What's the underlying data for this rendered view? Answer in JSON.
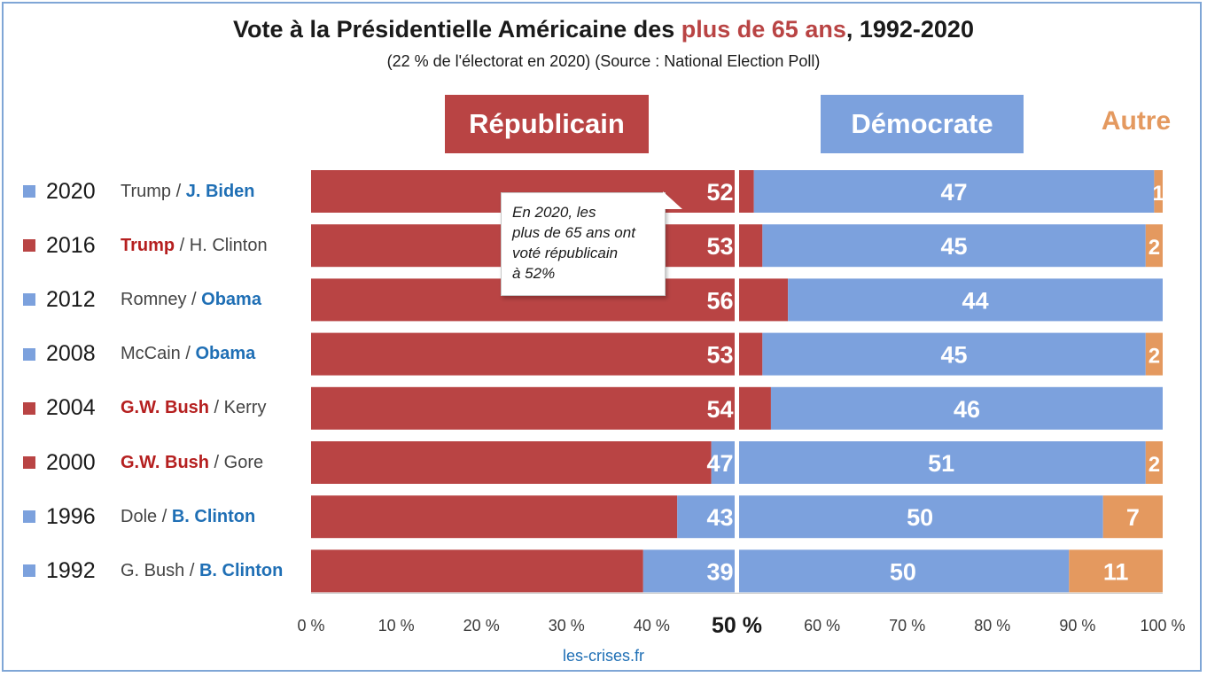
{
  "title_before": "Vote à la Présidentielle Américaine des ",
  "title_highlight": "plus de 65 ans",
  "title_after": ", 1992-2020",
  "subtitle": "(22 % de l'électorat en 2020) (Source : National Election Poll)",
  "legend": {
    "rep": "Républicain",
    "dem": "Démocrate",
    "autre": "Autre"
  },
  "callout": [
    "En 2020, les",
    "plus de 65 ans ont",
    "voté républicain",
    "à 52%"
  ],
  "source": "les-crises.fr",
  "colors": {
    "rep": "#b94444",
    "dem": "#7ca1dd",
    "autre": "#e4995f",
    "win_rep_text": "#b51f1f",
    "win_dem_text": "#1f6fb5"
  },
  "rows": [
    {
      "year": "2020",
      "rep": "Trump",
      "sep": " / ",
      "dem": "J. Biden",
      "winner": "dem"
    },
    {
      "year": "2016",
      "rep": "Trump",
      "sep": " / ",
      "dem": "H. Clinton",
      "winner": "rep"
    },
    {
      "year": "2012",
      "rep": "Romney",
      "sep": " / ",
      "dem": "Obama",
      "winner": "dem"
    },
    {
      "year": "2008",
      "rep": "McCain",
      "sep": " / ",
      "dem": "Obama",
      "winner": "dem"
    },
    {
      "year": "2004",
      "rep": "G.W. Bush",
      "sep": " / ",
      "dem": "Kerry",
      "winner": "rep"
    },
    {
      "year": "2000",
      "rep": "G.W. Bush",
      "sep": " / ",
      "dem": "Gore",
      "winner": "rep"
    },
    {
      "year": "1996",
      "rep": "Dole",
      "sep": " / ",
      "dem": "B. Clinton",
      "winner": "dem"
    },
    {
      "year": "1992",
      "rep": "G. Bush",
      "sep": " / ",
      "dem": "B. Clinton",
      "winner": "dem"
    }
  ],
  "chart_data": {
    "type": "bar",
    "orientation": "horizontal",
    "stacked": true,
    "categories": [
      "2020",
      "2016",
      "2012",
      "2008",
      "2004",
      "2000",
      "1996",
      "1992"
    ],
    "series": [
      {
        "name": "Républicain",
        "values": [
          52,
          53,
          56,
          53,
          54,
          47,
          43,
          39
        ]
      },
      {
        "name": "Démocrate",
        "values": [
          47,
          45,
          44,
          45,
          46,
          51,
          50,
          50
        ]
      },
      {
        "name": "Autre",
        "values": [
          1,
          2,
          0,
          2,
          0,
          2,
          7,
          11
        ]
      }
    ],
    "xlim": [
      0,
      100
    ],
    "x_ticks": [
      "0 %",
      "10 %",
      "20 %",
      "30 %",
      "40 %",
      "50 %",
      "60 %",
      "70 %",
      "80 %",
      "90 %",
      "100 %"
    ],
    "reference_line": 50,
    "legend_position": "top"
  }
}
